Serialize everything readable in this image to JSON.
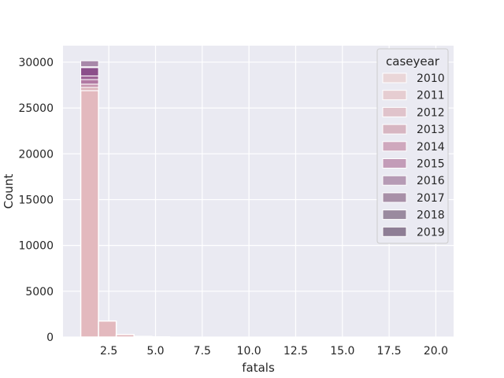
{
  "chart_data": {
    "type": "bar",
    "style": "seaborn histogram, stacked layers by hue",
    "xlabel": "fatals",
    "ylabel": "Count",
    "xlim": [
      0.05,
      20.95
    ],
    "ylim": [
      0,
      31800
    ],
    "x_ticks": [
      "2.5",
      "5.0",
      "7.5",
      "10.0",
      "12.5",
      "15.0",
      "17.5",
      "20.0"
    ],
    "x_tick_values": [
      2.5,
      5.0,
      7.5,
      10.0,
      12.5,
      15.0,
      17.5,
      20.0
    ],
    "y_ticks": [
      "0",
      "5000",
      "10000",
      "15000",
      "20000",
      "25000",
      "30000"
    ],
    "y_tick_values": [
      0,
      5000,
      10000,
      15000,
      20000,
      25000,
      30000
    ],
    "grid": true,
    "bins": [
      {
        "x0": 1.0,
        "x1": 1.95,
        "value": 26900
      },
      {
        "x0": 1.95,
        "x1": 2.9,
        "value": 1750
      },
      {
        "x0": 2.9,
        "x1": 3.85,
        "value": 280
      },
      {
        "x0": 3.85,
        "x1": 4.8,
        "value": 70
      },
      {
        "x0": 4.8,
        "x1": 5.75,
        "value": 20
      }
    ],
    "stacked_segments": [
      {
        "series": "2011",
        "y0": 26900,
        "y1": 27250,
        "color": "#dcb5bc"
      },
      {
        "series": "2014",
        "y0": 27250,
        "y1": 27600,
        "color": "#c896af"
      },
      {
        "series": "2015",
        "y0": 27600,
        "y1": 28100,
        "color": "#b27aa3"
      },
      {
        "series": "2016",
        "y0": 28100,
        "y1": 28500,
        "color": "#9e6597"
      },
      {
        "series": "2017",
        "y0": 28500,
        "y1": 29400,
        "color": "#8b4f8a"
      },
      {
        "series": "2019",
        "y0": 29500,
        "y1": 30150,
        "color": "#a888a9"
      }
    ],
    "legend": {
      "title": "caseyear",
      "placement": "top-right",
      "entries": [
        {
          "label": "2010",
          "color": "#ead6d8"
        },
        {
          "label": "2011",
          "color": "#e6cdd1"
        },
        {
          "label": "2012",
          "color": "#e0c3cb"
        },
        {
          "label": "2013",
          "color": "#d7b6c2"
        },
        {
          "label": "2014",
          "color": "#cfa8bd"
        },
        {
          "label": "2015",
          "color": "#c39cb8"
        },
        {
          "label": "2016",
          "color": "#b69bb5"
        },
        {
          "label": "2017",
          "color": "#a890a8"
        },
        {
          "label": "2018",
          "color": "#9a8a9f"
        },
        {
          "label": "2019",
          "color": "#8e7e95"
        }
      ]
    },
    "colors": {
      "background": "#eaeaf2",
      "grid": "#ffffff",
      "base_bar": "#e3b9be"
    }
  }
}
